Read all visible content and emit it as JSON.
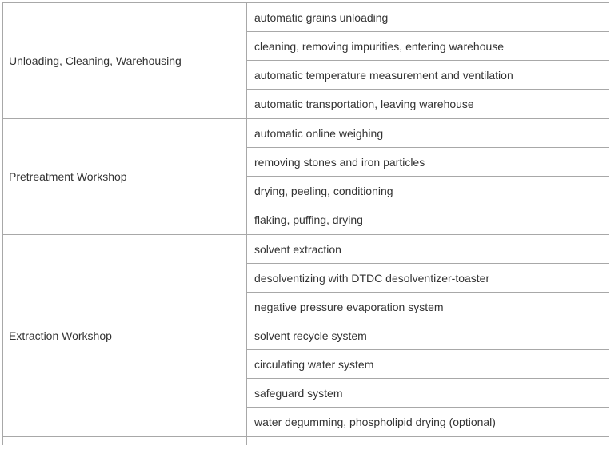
{
  "table": {
    "groups": [
      {
        "label": "Unloading, Cleaning, Warehousing",
        "items": [
          "automatic grains unloading",
          "cleaning, removing impurities, entering warehouse",
          "automatic temperature measurement and ventilation",
          "automatic transportation, leaving warehouse"
        ]
      },
      {
        "label": "Pretreatment Workshop",
        "items": [
          "automatic online weighing",
          "removing stones and iron particles",
          "drying, peeling, conditioning",
          "flaking, puffing, drying"
        ]
      },
      {
        "label": "Extraction Workshop",
        "items": [
          "solvent extraction",
          "desolventizing with DTDC desolventizer-toaster",
          "negative pressure evaporation system",
          "solvent recycle system",
          "circulating water system",
          "safeguard system",
          "water degumming, phospholipid drying (optional)"
        ]
      }
    ]
  }
}
